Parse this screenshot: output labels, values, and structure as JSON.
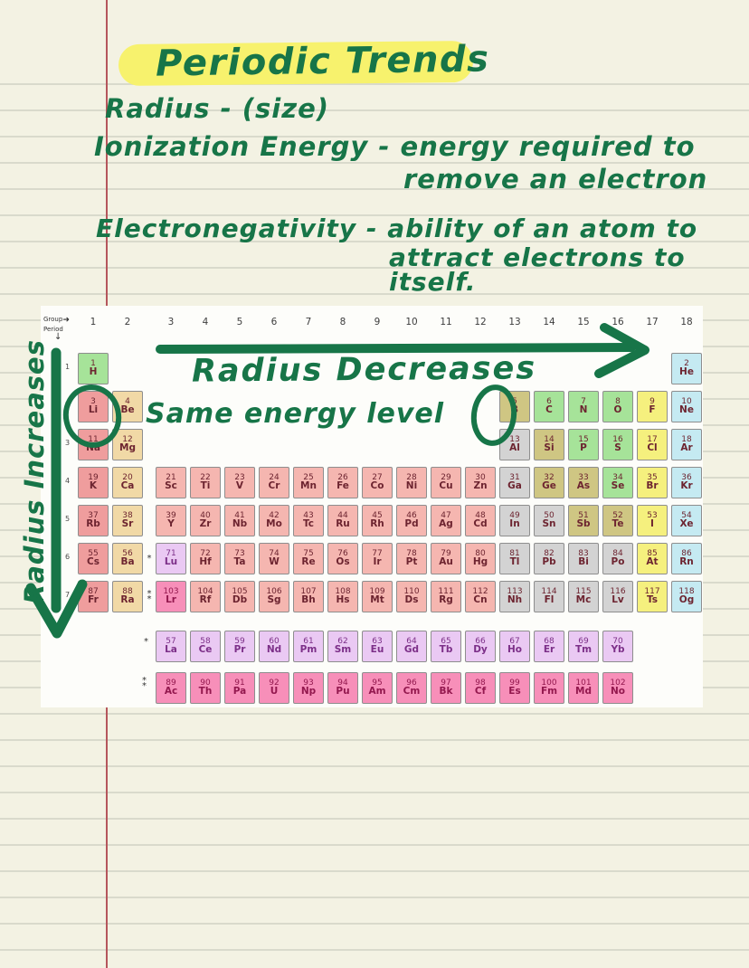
{
  "notes": {
    "title": "Periodic Trends",
    "radius_line": "Radius - (size)",
    "ionization_line": "Ionization Energy - energy required to",
    "ionization_line2": "remove an electron",
    "electronegativity_line": "Electronegativity - ability of an atom to",
    "electronegativity_line2": "attract electrons to",
    "electronegativity_line3": "itself."
  },
  "annotations": {
    "radius_decreases": "Radius Decreases",
    "same_energy_level": "Same energy level",
    "radius_increases": "Radius Increases",
    "circled_elements": [
      "Li",
      "C"
    ],
    "ink_color": "#177548",
    "highlight_color": "#f7f26d"
  },
  "paper": {
    "background_color": "#f3f2e3",
    "rule_color": "#d9dacc",
    "margin_line_color": "#b5565c"
  },
  "periodic_table": {
    "corner": {
      "group_label": "Group",
      "group_arrow": "➜",
      "period_label": "Period",
      "period_arrow": "↓"
    },
    "group_numbers": [
      "1",
      "2",
      "3",
      "4",
      "5",
      "6",
      "7",
      "8",
      "9",
      "10",
      "11",
      "12",
      "13",
      "14",
      "15",
      "16",
      "17",
      "18"
    ],
    "period_numbers": [
      "1",
      "2",
      "3",
      "4",
      "5",
      "6",
      "7"
    ],
    "markers": {
      "row6": "*",
      "row7": "**",
      "lanthanide_row": "*",
      "actinide_row": "**"
    },
    "category_colors": {
      "alkali": "#ef9d9d",
      "alkaline": "#f1d9a6",
      "transition": "#f5b6b0",
      "post": "#d3d3d3",
      "metalloid": "#cfc683",
      "nonmetal": "#a6e399",
      "halogen": "#f5f07e",
      "noble": "#c5eaf2",
      "lanthanide": "#eac9f3",
      "actinide": "#f78fb9"
    },
    "category_ink": {
      "default": "#6d2430",
      "lanthanide": "#7c2f88",
      "actinide": "#93184e"
    },
    "rows": [
      {
        "period": 1,
        "cells": [
          {
            "n": 1,
            "s": "H",
            "col": 1,
            "c": "nonmetal"
          },
          {
            "n": 2,
            "s": "He",
            "col": 18,
            "c": "noble"
          }
        ]
      },
      {
        "period": 2,
        "cells": [
          {
            "n": 3,
            "s": "Li",
            "col": 1,
            "c": "alkali"
          },
          {
            "n": 4,
            "s": "Be",
            "col": 2,
            "c": "alkaline"
          },
          {
            "n": 5,
            "s": "B",
            "col": 13,
            "c": "metalloid"
          },
          {
            "n": 6,
            "s": "C",
            "col": 14,
            "c": "nonmetal"
          },
          {
            "n": 7,
            "s": "N",
            "col": 15,
            "c": "nonmetal"
          },
          {
            "n": 8,
            "s": "O",
            "col": 16,
            "c": "nonmetal"
          },
          {
            "n": 9,
            "s": "F",
            "col": 17,
            "c": "halogen"
          },
          {
            "n": 10,
            "s": "Ne",
            "col": 18,
            "c": "noble"
          }
        ]
      },
      {
        "period": 3,
        "cells": [
          {
            "n": 11,
            "s": "Na",
            "col": 1,
            "c": "alkali"
          },
          {
            "n": 12,
            "s": "Mg",
            "col": 2,
            "c": "alkaline"
          },
          {
            "n": 13,
            "s": "Al",
            "col": 13,
            "c": "post"
          },
          {
            "n": 14,
            "s": "Si",
            "col": 14,
            "c": "metalloid"
          },
          {
            "n": 15,
            "s": "P",
            "col": 15,
            "c": "nonmetal"
          },
          {
            "n": 16,
            "s": "S",
            "col": 16,
            "c": "nonmetal"
          },
          {
            "n": 17,
            "s": "Cl",
            "col": 17,
            "c": "halogen"
          },
          {
            "n": 18,
            "s": "Ar",
            "col": 18,
            "c": "noble"
          }
        ]
      },
      {
        "period": 4,
        "cells": [
          {
            "n": 19,
            "s": "K",
            "col": 1,
            "c": "alkali"
          },
          {
            "n": 20,
            "s": "Ca",
            "col": 2,
            "c": "alkaline"
          },
          {
            "n": 21,
            "s": "Sc",
            "col": 3,
            "c": "transition"
          },
          {
            "n": 22,
            "s": "Ti",
            "col": 4,
            "c": "transition"
          },
          {
            "n": 23,
            "s": "V",
            "col": 5,
            "c": "transition"
          },
          {
            "n": 24,
            "s": "Cr",
            "col": 6,
            "c": "transition"
          },
          {
            "n": 25,
            "s": "Mn",
            "col": 7,
            "c": "transition"
          },
          {
            "n": 26,
            "s": "Fe",
            "col": 8,
            "c": "transition"
          },
          {
            "n": 27,
            "s": "Co",
            "col": 9,
            "c": "transition"
          },
          {
            "n": 28,
            "s": "Ni",
            "col": 10,
            "c": "transition"
          },
          {
            "n": 29,
            "s": "Cu",
            "col": 11,
            "c": "transition"
          },
          {
            "n": 30,
            "s": "Zn",
            "col": 12,
            "c": "transition"
          },
          {
            "n": 31,
            "s": "Ga",
            "col": 13,
            "c": "post"
          },
          {
            "n": 32,
            "s": "Ge",
            "col": 14,
            "c": "metalloid"
          },
          {
            "n": 33,
            "s": "As",
            "col": 15,
            "c": "metalloid"
          },
          {
            "n": 34,
            "s": "Se",
            "col": 16,
            "c": "nonmetal"
          },
          {
            "n": 35,
            "s": "Br",
            "col": 17,
            "c": "halogen"
          },
          {
            "n": 36,
            "s": "Kr",
            "col": 18,
            "c": "noble"
          }
        ]
      },
      {
        "period": 5,
        "cells": [
          {
            "n": 37,
            "s": "Rb",
            "col": 1,
            "c": "alkali"
          },
          {
            "n": 38,
            "s": "Sr",
            "col": 2,
            "c": "alkaline"
          },
          {
            "n": 39,
            "s": "Y",
            "col": 3,
            "c": "transition"
          },
          {
            "n": 40,
            "s": "Zr",
            "col": 4,
            "c": "transition"
          },
          {
            "n": 41,
            "s": "Nb",
            "col": 5,
            "c": "transition"
          },
          {
            "n": 42,
            "s": "Mo",
            "col": 6,
            "c": "transition"
          },
          {
            "n": 43,
            "s": "Tc",
            "col": 7,
            "c": "transition"
          },
          {
            "n": 44,
            "s": "Ru",
            "col": 8,
            "c": "transition"
          },
          {
            "n": 45,
            "s": "Rh",
            "col": 9,
            "c": "transition"
          },
          {
            "n": 46,
            "s": "Pd",
            "col": 10,
            "c": "transition"
          },
          {
            "n": 47,
            "s": "Ag",
            "col": 11,
            "c": "transition"
          },
          {
            "n": 48,
            "s": "Cd",
            "col": 12,
            "c": "transition"
          },
          {
            "n": 49,
            "s": "In",
            "col": 13,
            "c": "post"
          },
          {
            "n": 50,
            "s": "Sn",
            "col": 14,
            "c": "post"
          },
          {
            "n": 51,
            "s": "Sb",
            "col": 15,
            "c": "metalloid"
          },
          {
            "n": 52,
            "s": "Te",
            "col": 16,
            "c": "metalloid"
          },
          {
            "n": 53,
            "s": "I",
            "col": 17,
            "c": "halogen"
          },
          {
            "n": 54,
            "s": "Xe",
            "col": 18,
            "c": "noble"
          }
        ]
      },
      {
        "period": 6,
        "cells": [
          {
            "n": 55,
            "s": "Cs",
            "col": 1,
            "c": "alkali"
          },
          {
            "n": 56,
            "s": "Ba",
            "col": 2,
            "c": "alkaline"
          },
          {
            "n": 71,
            "s": "Lu",
            "col": 3,
            "c": "lanthanide"
          },
          {
            "n": 72,
            "s": "Hf",
            "col": 4,
            "c": "transition"
          },
          {
            "n": 73,
            "s": "Ta",
            "col": 5,
            "c": "transition"
          },
          {
            "n": 74,
            "s": "W",
            "col": 6,
            "c": "transition"
          },
          {
            "n": 75,
            "s": "Re",
            "col": 7,
            "c": "transition"
          },
          {
            "n": 76,
            "s": "Os",
            "col": 8,
            "c": "transition"
          },
          {
            "n": 77,
            "s": "Ir",
            "col": 9,
            "c": "transition"
          },
          {
            "n": 78,
            "s": "Pt",
            "col": 10,
            "c": "transition"
          },
          {
            "n": 79,
            "s": "Au",
            "col": 11,
            "c": "transition"
          },
          {
            "n": 80,
            "s": "Hg",
            "col": 12,
            "c": "transition"
          },
          {
            "n": 81,
            "s": "Tl",
            "col": 13,
            "c": "post"
          },
          {
            "n": 82,
            "s": "Pb",
            "col": 14,
            "c": "post"
          },
          {
            "n": 83,
            "s": "Bi",
            "col": 15,
            "c": "post"
          },
          {
            "n": 84,
            "s": "Po",
            "col": 16,
            "c": "post"
          },
          {
            "n": 85,
            "s": "At",
            "col": 17,
            "c": "halogen"
          },
          {
            "n": 86,
            "s": "Rn",
            "col": 18,
            "c": "noble"
          }
        ]
      },
      {
        "period": 7,
        "cells": [
          {
            "n": 87,
            "s": "Fr",
            "col": 1,
            "c": "alkali"
          },
          {
            "n": 88,
            "s": "Ra",
            "col": 2,
            "c": "alkaline"
          },
          {
            "n": 103,
            "s": "Lr",
            "col": 3,
            "c": "actinide"
          },
          {
            "n": 104,
            "s": "Rf",
            "col": 4,
            "c": "transition"
          },
          {
            "n": 105,
            "s": "Db",
            "col": 5,
            "c": "transition"
          },
          {
            "n": 106,
            "s": "Sg",
            "col": 6,
            "c": "transition"
          },
          {
            "n": 107,
            "s": "Bh",
            "col": 7,
            "c": "transition"
          },
          {
            "n": 108,
            "s": "Hs",
            "col": 8,
            "c": "transition"
          },
          {
            "n": 109,
            "s": "Mt",
            "col": 9,
            "c": "transition"
          },
          {
            "n": 110,
            "s": "Ds",
            "col": 10,
            "c": "transition"
          },
          {
            "n": 111,
            "s": "Rg",
            "col": 11,
            "c": "transition"
          },
          {
            "n": 112,
            "s": "Cn",
            "col": 12,
            "c": "transition"
          },
          {
            "n": 113,
            "s": "Nh",
            "col": 13,
            "c": "post"
          },
          {
            "n": 114,
            "s": "Fl",
            "col": 14,
            "c": "post"
          },
          {
            "n": 115,
            "s": "Mc",
            "col": 15,
            "c": "post"
          },
          {
            "n": 116,
            "s": "Lv",
            "col": 16,
            "c": "post"
          },
          {
            "n": 117,
            "s": "Ts",
            "col": 17,
            "c": "halogen"
          },
          {
            "n": 118,
            "s": "Og",
            "col": 18,
            "c": "noble"
          }
        ]
      }
    ],
    "lanthanides": [
      {
        "n": 57,
        "s": "La",
        "c": "lanthanide"
      },
      {
        "n": 58,
        "s": "Ce",
        "c": "lanthanide"
      },
      {
        "n": 59,
        "s": "Pr",
        "c": "lanthanide"
      },
      {
        "n": 60,
        "s": "Nd",
        "c": "lanthanide"
      },
      {
        "n": 61,
        "s": "Pm",
        "c": "lanthanide"
      },
      {
        "n": 62,
        "s": "Sm",
        "c": "lanthanide"
      },
      {
        "n": 63,
        "s": "Eu",
        "c": "lanthanide"
      },
      {
        "n": 64,
        "s": "Gd",
        "c": "lanthanide"
      },
      {
        "n": 65,
        "s": "Tb",
        "c": "lanthanide"
      },
      {
        "n": 66,
        "s": "Dy",
        "c": "lanthanide"
      },
      {
        "n": 67,
        "s": "Ho",
        "c": "lanthanide"
      },
      {
        "n": 68,
        "s": "Er",
        "c": "lanthanide"
      },
      {
        "n": 69,
        "s": "Tm",
        "c": "lanthanide"
      },
      {
        "n": 70,
        "s": "Yb",
        "c": "lanthanide"
      }
    ],
    "actinides": [
      {
        "n": 89,
        "s": "Ac",
        "c": "actinide"
      },
      {
        "n": 90,
        "s": "Th",
        "c": "actinide"
      },
      {
        "n": 91,
        "s": "Pa",
        "c": "actinide"
      },
      {
        "n": 92,
        "s": "U",
        "c": "actinide"
      },
      {
        "n": 93,
        "s": "Np",
        "c": "actinide"
      },
      {
        "n": 94,
        "s": "Pu",
        "c": "actinide"
      },
      {
        "n": 95,
        "s": "Am",
        "c": "actinide"
      },
      {
        "n": 96,
        "s": "Cm",
        "c": "actinide"
      },
      {
        "n": 97,
        "s": "Bk",
        "c": "actinide"
      },
      {
        "n": 98,
        "s": "Cf",
        "c": "actinide"
      },
      {
        "n": 99,
        "s": "Es",
        "c": "actinide"
      },
      {
        "n": 100,
        "s": "Fm",
        "c": "actinide"
      },
      {
        "n": 101,
        "s": "Md",
        "c": "actinide"
      },
      {
        "n": 102,
        "s": "No",
        "c": "actinide"
      }
    ]
  }
}
